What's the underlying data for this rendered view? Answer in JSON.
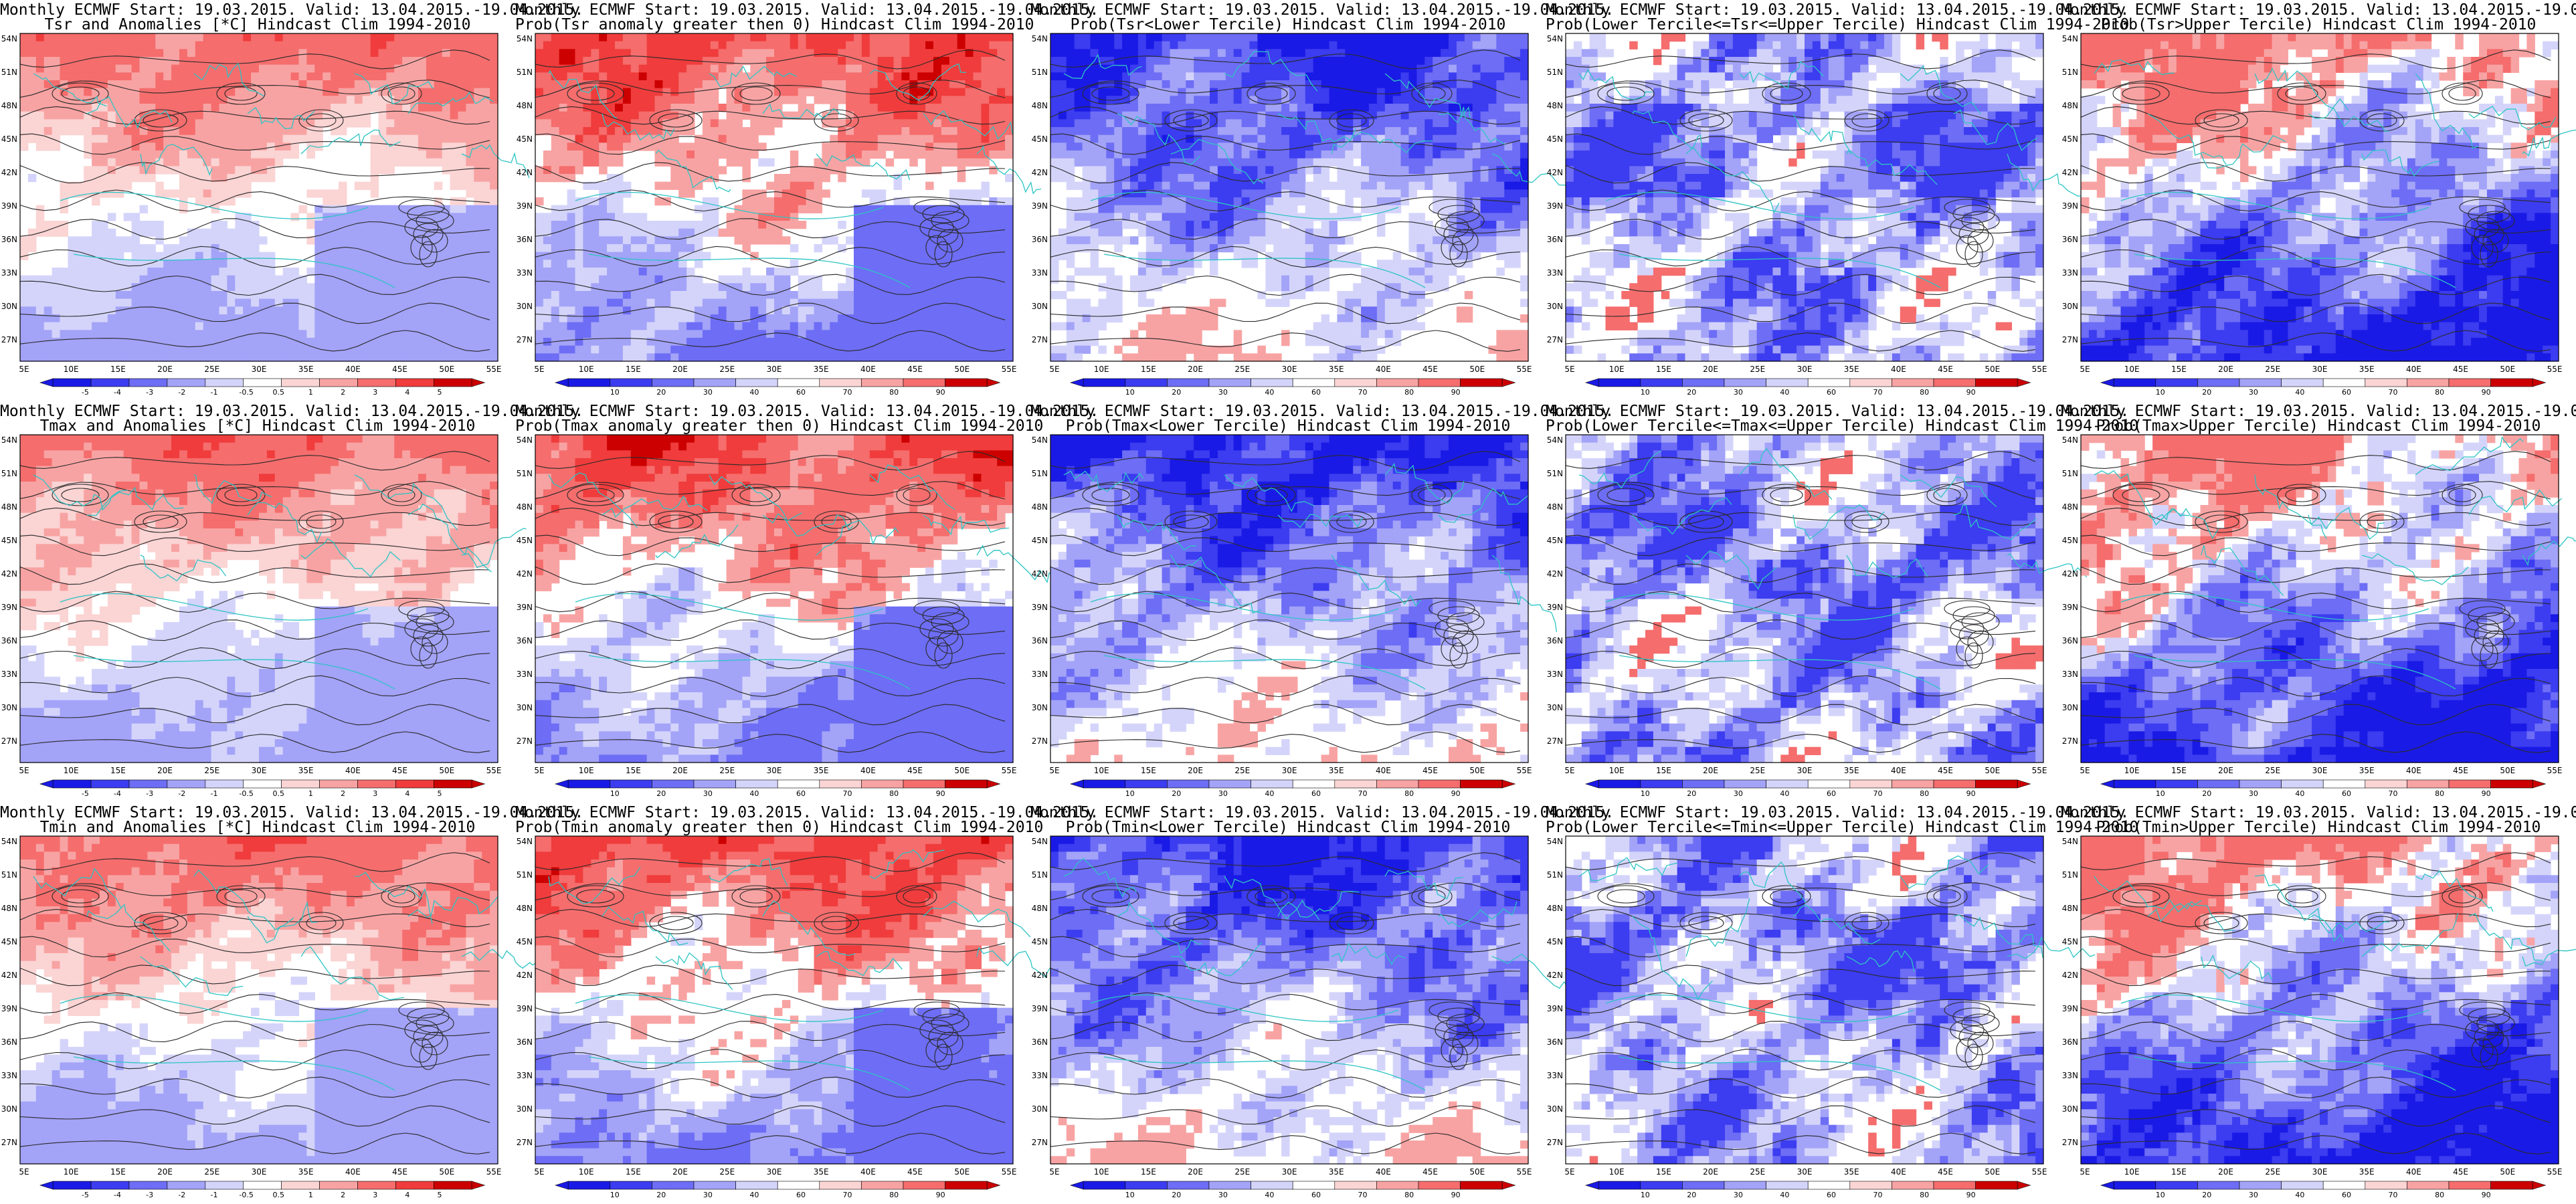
{
  "common": {
    "header": "Monthly ECMWF Start: 19.03.2015. Valid: 13.04.2015.-19.04.2015.",
    "lon_labels": [
      "5E",
      "10E",
      "15E",
      "20E",
      "25E",
      "30E",
      "35E",
      "40E",
      "45E",
      "50E",
      "55E"
    ],
    "lat_labels": [
      "54N",
      "51N",
      "48N",
      "45N",
      "42N",
      "39N",
      "36N",
      "33N",
      "30N",
      "27N"
    ],
    "colors": {
      "blue5": "#1a1ae6",
      "blue4": "#3c3cf0",
      "blue3": "#6d6df5",
      "blue2": "#a3a3f8",
      "blue1": "#d4d4fb",
      "red1": "#fbd4d4",
      "red2": "#f8a3a3",
      "red3": "#f56d6d",
      "red4": "#f03c3c",
      "red5": "#cc0000",
      "contour": "#2a2a2a",
      "borders": "#2ec4c4"
    }
  },
  "colorbars": {
    "anomaly": [
      "-5",
      "-4",
      "-3",
      "-2",
      "-1",
      "-0.5",
      "0.5",
      "1",
      "2",
      "3",
      "4",
      "5"
    ],
    "probability": [
      "10",
      "20",
      "30",
      "40",
      "60",
      "70",
      "80",
      "90"
    ]
  },
  "panels": [
    {
      "title": "Tsr and Anomalies [*C] Hindcast Clim 1994-2010",
      "scheme": "anom_warm",
      "colorbar": "anomaly"
    },
    {
      "title": "Prob(Tsr anomaly greater then 0) Hindcast Clim 1994-2010",
      "scheme": "prob_warm",
      "colorbar": "probability"
    },
    {
      "title": "Prob(Tsr<Lower Tercile) Hindcast Clim 1994-2010",
      "scheme": "prob_blue",
      "colorbar": "probability"
    },
    {
      "title": "Prob(Lower Tercile<=Tsr<=Upper Tercile) Hindcast Clim 1994-2010",
      "scheme": "prob_mixed",
      "colorbar": "probability"
    },
    {
      "title": "Prob(Tsr>Upper Tercile) Hindcast Clim 1994-2010",
      "scheme": "prob_upper",
      "colorbar": "probability"
    },
    {
      "title": "Tmax and Anomalies [*C] Hindcast Clim 1994-2010",
      "scheme": "anom_warm",
      "colorbar": "anomaly"
    },
    {
      "title": "Prob(Tmax anomaly greater then 0) Hindcast Clim 1994-2010",
      "scheme": "prob_warm",
      "colorbar": "probability"
    },
    {
      "title": "Prob(Tmax<Lower Tercile) Hindcast Clim 1994-2010",
      "scheme": "prob_blue",
      "colorbar": "probability"
    },
    {
      "title": "Prob(Lower Tercile<=Tmax<=Upper Tercile) Hindcast Clim 1994-2010",
      "scheme": "prob_mixed",
      "colorbar": "probability"
    },
    {
      "title": "Prob(Tmax>Upper Tercile) Hindcast Clim 1994-2010",
      "scheme": "prob_upper",
      "colorbar": "probability"
    },
    {
      "title": "Tmin and Anomalies [*C] Hindcast Clim 1994-2010",
      "scheme": "anom_warm",
      "colorbar": "anomaly"
    },
    {
      "title": "Prob(Tmin anomaly greater then 0) Hindcast Clim 1994-2010",
      "scheme": "prob_warm",
      "colorbar": "probability"
    },
    {
      "title": "Prob(Tmin<Lower Tercile) Hindcast Clim 1994-2010",
      "scheme": "prob_blue",
      "colorbar": "probability"
    },
    {
      "title": "Prob(Lower Tercile<=Tmin<=Upper Tercile) Hindcast Clim 1994-2010",
      "scheme": "prob_mixed",
      "colorbar": "probability"
    },
    {
      "title": "Prob(Tmin>Upper Tercile) Hindcast Clim 1994-2010",
      "scheme": "prob_upper",
      "colorbar": "probability"
    }
  ]
}
